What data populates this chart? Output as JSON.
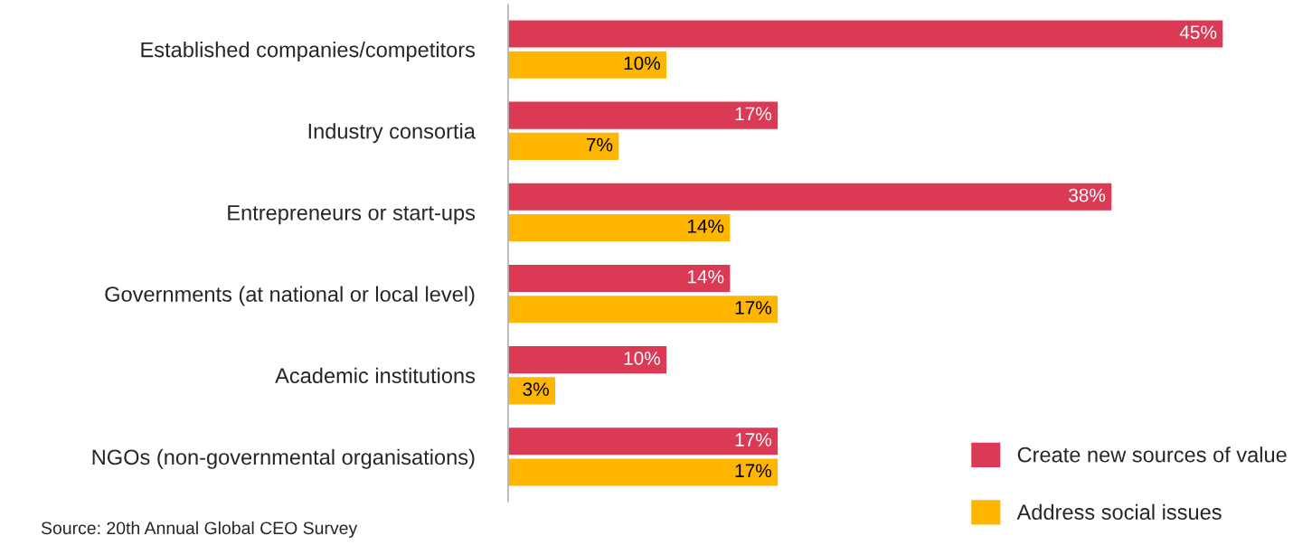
{
  "chart_data": {
    "type": "bar",
    "orientation": "horizontal",
    "categories": [
      "Established companies/competitors",
      "Industry consortia",
      "Entrepreneurs or start-ups",
      "Governments (at national or local level)",
      "Academic institutions",
      "NGOs (non-governmental organisations)"
    ],
    "series": [
      {
        "name": "Create new sources of value",
        "color": "#db3a55",
        "values": [
          45,
          17,
          38,
          14,
          10,
          17
        ],
        "value_labels": [
          "45%",
          "17%",
          "38%",
          "14%",
          "10%",
          "17%"
        ]
      },
      {
        "name": "Address social issues",
        "color": "#ffb600",
        "values": [
          10,
          7,
          14,
          17,
          3,
          17
        ],
        "value_labels": [
          "10%",
          "7%",
          "14%",
          "17%",
          "3%",
          "17%"
        ]
      }
    ],
    "tick_labels": "y",
    "grid": false,
    "legend": "bottom right",
    "annotations": [
      "Source: 20th Annual Global CEO Survey"
    ]
  }
}
